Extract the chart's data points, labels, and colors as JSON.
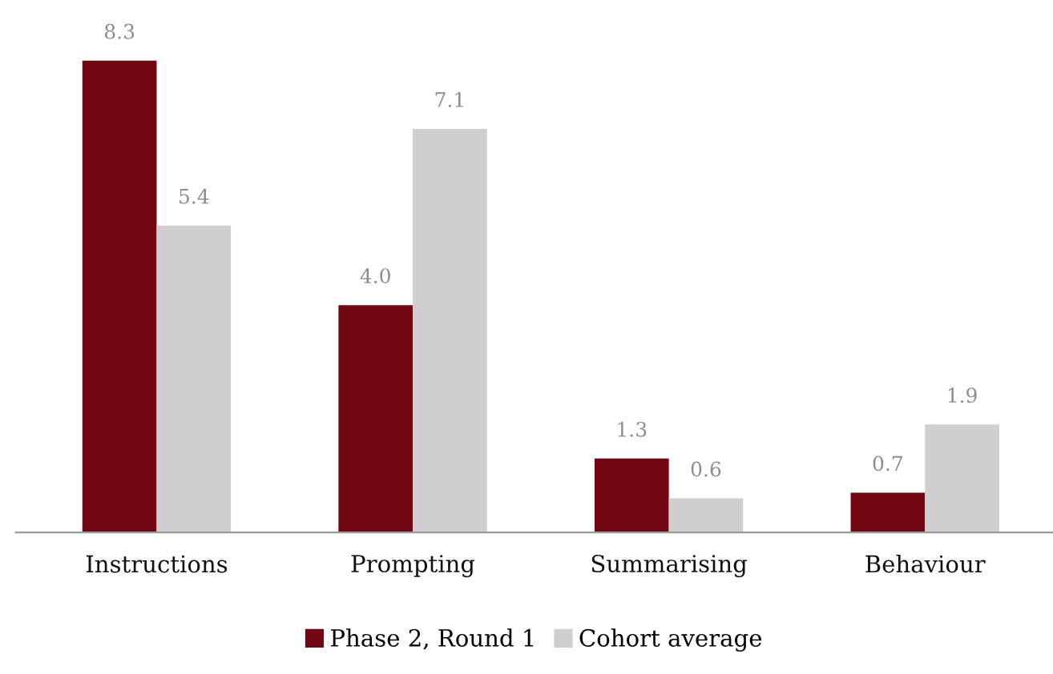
{
  "chart_data": {
    "type": "bar",
    "categories": [
      "Instructions",
      "Prompting",
      "Summarising",
      "Behaviour"
    ],
    "series": [
      {
        "name": "Phase 2, Round 1",
        "color": "#720811",
        "values": [
          8.3,
          4.0,
          1.3,
          0.7
        ],
        "value_labels": [
          "8.3",
          "4.0",
          "1.3",
          "0.7"
        ]
      },
      {
        "name": "Cohort average",
        "color": "#d0cecf",
        "values": [
          5.4,
          7.1,
          0.6,
          1.9
        ],
        "value_labels": [
          "5.4",
          "7.1",
          "0.6",
          "1.9"
        ]
      }
    ],
    "grid": false,
    "legend": "bottom",
    "tick_labels": "x"
  }
}
